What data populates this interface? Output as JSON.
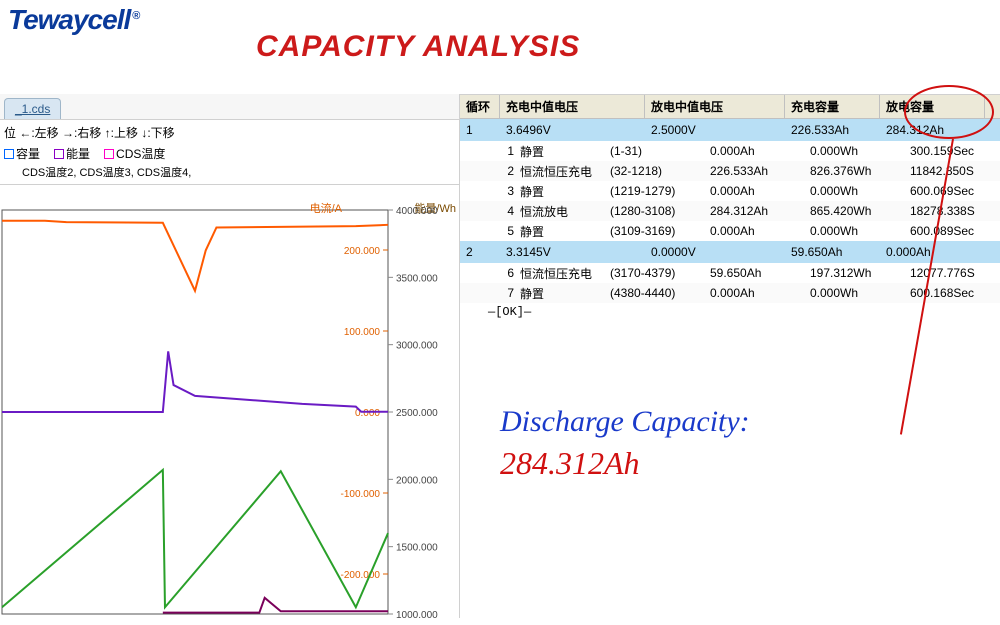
{
  "brand": {
    "name": "Tewaycell",
    "reg": "®"
  },
  "title": "CAPACITY ANALYSIS",
  "tab": {
    "filename": "_1.cds"
  },
  "controls": {
    "nav_hints": "位 ←:左移 →:右移 ↑:上移 ↓:下移",
    "legend": [
      {
        "color": "#0066ff",
        "label": "容量"
      },
      {
        "color": "#8a00c4",
        "label": "能量"
      },
      {
        "color": "#ff00c8",
        "label": "CDS温度"
      }
    ],
    "sub_legend": "CDS温度2, CDS温度3, CDS温度4,"
  },
  "chart": {
    "left_axis": {
      "label": "电流/A",
      "color": "#e06000",
      "ticks": [
        "200.000",
        "100.000",
        "0.000",
        "-100.000",
        "-200.000"
      ]
    },
    "right_axis": {
      "label": "能量/Wh",
      "color": "#7a4a00",
      "ticks": [
        "4000.000",
        "3500.000",
        "3000.000",
        "2500.000",
        "2000.000",
        "1500.000",
        "1000.000"
      ]
    },
    "background": "#ffffff",
    "series": [
      {
        "type": "line",
        "color": "#ff5a00",
        "width": 2,
        "points": [
          [
            0,
            3920
          ],
          [
            40,
            3920
          ],
          [
            60,
            3910
          ],
          [
            150,
            3905
          ],
          [
            180,
            3400
          ],
          [
            190,
            3700
          ],
          [
            200,
            3870
          ],
          [
            330,
            3880
          ],
          [
            360,
            3890
          ]
        ]
      },
      {
        "type": "line",
        "color": "#6a1bc4",
        "width": 2,
        "points": [
          [
            0,
            2500
          ],
          [
            150,
            2500
          ],
          [
            155,
            2950
          ],
          [
            160,
            2700
          ],
          [
            180,
            2620
          ],
          [
            280,
            2560
          ],
          [
            330,
            2540
          ],
          [
            335,
            2502
          ],
          [
            360,
            2502
          ]
        ]
      },
      {
        "type": "line",
        "color": "#2aa02a",
        "width": 2,
        "points": [
          [
            0,
            1050
          ],
          [
            150,
            2070
          ],
          [
            152,
            1050
          ],
          [
            260,
            2060
          ],
          [
            330,
            1050
          ],
          [
            360,
            1600
          ]
        ]
      },
      {
        "type": "line",
        "color": "#7a005a",
        "width": 2,
        "points": [
          [
            150,
            1010
          ],
          [
            240,
            1010
          ],
          [
            245,
            1120
          ],
          [
            260,
            1020
          ],
          [
            360,
            1020
          ]
        ]
      }
    ],
    "xlim": [
      0,
      360
    ],
    "ylim": [
      1000,
      4000
    ]
  },
  "table": {
    "headers": {
      "cycle": "循环",
      "charge_v": "充电中值电压",
      "discharge_v": "放电中值电压",
      "charge_cap": "充电容量",
      "discharge_cap": "放电容量"
    },
    "cycles": [
      {
        "n": "1",
        "cv": "3.6496V",
        "dv": "2.5000V",
        "cc": "226.533Ah",
        "dc": "284.312Ah",
        "steps": [
          {
            "i": "1",
            "name": "静置",
            "range": "(1-31)",
            "ah": "0.000Ah",
            "wh": "0.000Wh",
            "t": "300.159Sec"
          },
          {
            "i": "2",
            "name": "恒流恒压充电",
            "range": "(32-1218)",
            "ah": "226.533Ah",
            "wh": "826.376Wh",
            "t": "11842.850S"
          },
          {
            "i": "3",
            "name": "静置",
            "range": "(1219-1279)",
            "ah": "0.000Ah",
            "wh": "0.000Wh",
            "t": "600.069Sec"
          },
          {
            "i": "4",
            "name": "恒流放电",
            "range": "(1280-3108)",
            "ah": "284.312Ah",
            "wh": "865.420Wh",
            "t": "18278.338S"
          },
          {
            "i": "5",
            "name": "静置",
            "range": "(3109-3169)",
            "ah": "0.000Ah",
            "wh": "0.000Wh",
            "t": "600.089Sec"
          }
        ]
      },
      {
        "n": "2",
        "cv": "3.3145V",
        "dv": "0.0000V",
        "cc": "59.650Ah",
        "dc": "0.000Ah",
        "steps": [
          {
            "i": "6",
            "name": "恒流恒压充电",
            "range": "(3170-4379)",
            "ah": "59.650Ah",
            "wh": "197.312Wh",
            "t": "12077.776S"
          },
          {
            "i": "7",
            "name": "静置",
            "range": "(4380-4440)",
            "ah": "0.000Ah",
            "wh": "0.000Wh",
            "t": "600.168Sec"
          }
        ]
      }
    ],
    "ok": "—[OK]—"
  },
  "callout": {
    "label": "Discharge Capacity:",
    "value": "284.312Ah"
  },
  "colors": {
    "brand": "#0a3a9a",
    "title": "#cc1a1a",
    "circle": "#d01010",
    "callout_label": "#1a3aca"
  }
}
